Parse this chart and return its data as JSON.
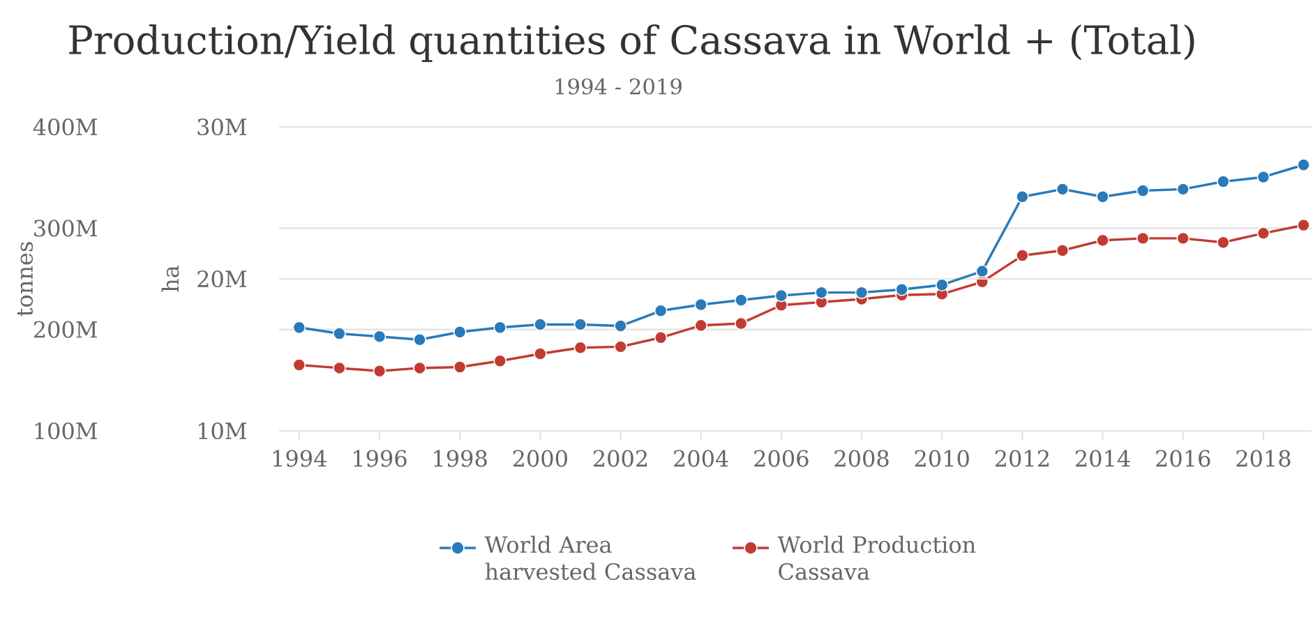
{
  "chart_data": {
    "type": "line",
    "title": "Production/Yield quantities of Cassava in World + (Total)",
    "subtitle": "1994 - 2019",
    "ylabel": "tonnes",
    "y2label": "ha",
    "x": [
      1994,
      1995,
      1996,
      1997,
      1998,
      1999,
      2000,
      2001,
      2002,
      2003,
      2004,
      2005,
      2006,
      2007,
      2008,
      2009,
      2010,
      2011,
      2012,
      2013,
      2014,
      2015,
      2016,
      2017,
      2018,
      2019
    ],
    "series": [
      {
        "name": "World Area harvested Cassava",
        "color": "#2a7ab9",
        "axis": "y2",
        "values": [
          16800000,
          16400000,
          16200000,
          16000000,
          16500000,
          16800000,
          17000000,
          17000000,
          16900000,
          17900000,
          18300000,
          18600000,
          18900000,
          19100000,
          19100000,
          19300000,
          19600000,
          20500000,
          25400000,
          25900000,
          25400000,
          25800000,
          25900000,
          26400000,
          26700000,
          27500000
        ]
      },
      {
        "name": "World Production Cassava",
        "color": "#c23b32",
        "axis": "y",
        "values": [
          165000000,
          162000000,
          159000000,
          162000000,
          163000000,
          169000000,
          176000000,
          182000000,
          183000000,
          192000000,
          204000000,
          206000000,
          224000000,
          227000000,
          230000000,
          234000000,
          235000000,
          247000000,
          273000000,
          278000000,
          288000000,
          290000000,
          290000000,
          286000000,
          295000000,
          303000000
        ]
      }
    ],
    "xlim": [
      1993.5,
      2019.2
    ],
    "xticks": [
      1994,
      1996,
      1998,
      2000,
      2002,
      2004,
      2006,
      2008,
      2010,
      2012,
      2014,
      2016,
      2018
    ],
    "ylim": [
      100000000,
      400000000
    ],
    "yticks": [
      {
        "value": 100000000,
        "label": "100M"
      },
      {
        "value": 200000000,
        "label": "200M"
      },
      {
        "value": 300000000,
        "label": "300M"
      },
      {
        "value": 400000000,
        "label": "400M"
      }
    ],
    "y2lim": [
      10000000,
      30000000
    ],
    "y2ticks": [
      {
        "value": 10000000,
        "label": "10M"
      },
      {
        "value": 20000000,
        "label": "20M"
      },
      {
        "value": 30000000,
        "label": "30M"
      }
    ],
    "grid": "y",
    "legend": "bottom",
    "marker": "circle",
    "line_style": "solid"
  }
}
